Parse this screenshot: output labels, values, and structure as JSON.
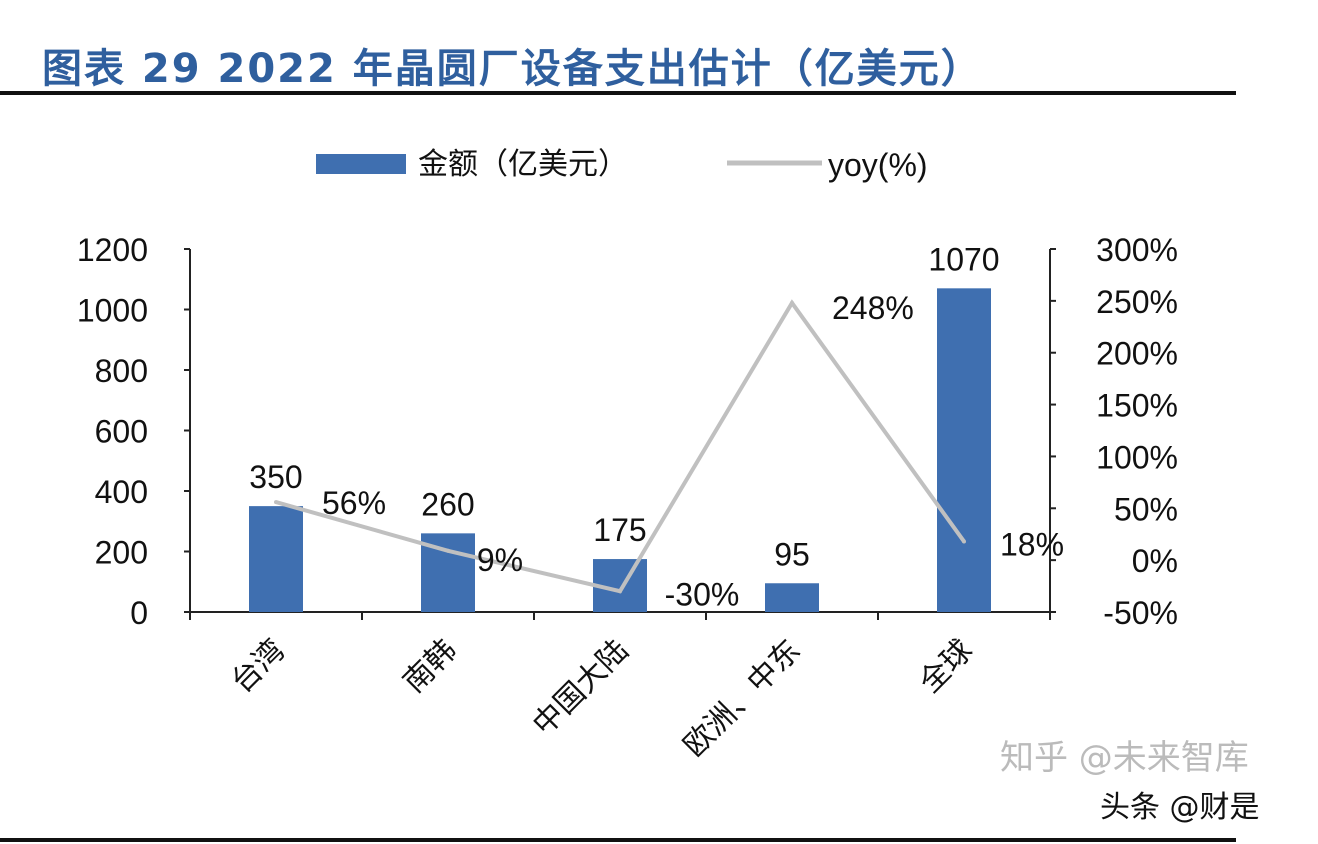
{
  "chart_data": {
    "type": "bar+line",
    "title": "图表 29 2022 年晶圆厂设备支出估计（亿美元）",
    "categories": [
      "台湾",
      "南韩",
      "中国大陆",
      "欧洲、中东",
      "全球"
    ],
    "series": [
      {
        "name": "金额（亿美元）",
        "type": "bar",
        "axis": "left",
        "values": [
          350,
          260,
          175,
          95,
          1070
        ],
        "color": "#3f6fb0"
      },
      {
        "name": "yoy(%)",
        "type": "line",
        "axis": "right",
        "values": [
          56,
          9,
          -30,
          248,
          18
        ],
        "labels": [
          "56%",
          "9%",
          "-30%",
          "248%",
          "18%"
        ],
        "color": "#c0c0c0"
      }
    ],
    "left_axis": {
      "range": [
        0,
        1200
      ],
      "ticks": [
        "0",
        "200",
        "400",
        "600",
        "800",
        "1000",
        "1200"
      ]
    },
    "right_axis": {
      "range": [
        -50,
        300
      ],
      "ticks": [
        "-50%",
        "0%",
        "50%",
        "100%",
        "150%",
        "200%",
        "250%",
        "300%"
      ]
    },
    "grid": false,
    "legend": "top"
  },
  "watermarks": [
    "知乎 @未来智库",
    "头条 @财是"
  ]
}
